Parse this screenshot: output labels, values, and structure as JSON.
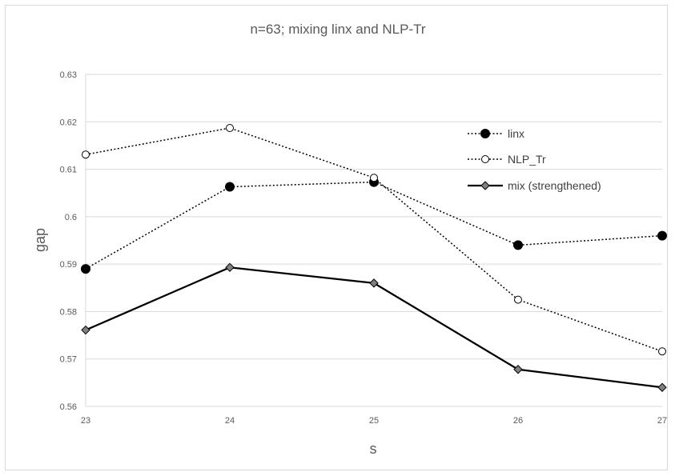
{
  "chart_data": {
    "type": "line",
    "title": "n=63; mixing linx and NLP-Tr",
    "xlabel": "s",
    "ylabel": "gap",
    "x": [
      23,
      24,
      25,
      26,
      27
    ],
    "xlim": [
      23,
      27
    ],
    "ylim": [
      0.56,
      0.63
    ],
    "yticks": [
      "0.56",
      "0.57",
      "0.58",
      "0.59",
      "0.6",
      "0.61",
      "0.62",
      "0.63"
    ],
    "xticks": [
      "23",
      "24",
      "25",
      "26",
      "27"
    ],
    "grid": "horizontal",
    "legend_position": "top-right",
    "series": [
      {
        "name": "linx",
        "values": [
          0.589,
          0.6063,
          0.6073,
          0.594,
          0.596
        ],
        "style": "dotted",
        "marker": "filled-circle",
        "color": "#000000"
      },
      {
        "name": "NLP_Tr",
        "values": [
          0.6131,
          0.6187,
          0.6082,
          0.5825,
          0.5716
        ],
        "style": "dotted",
        "marker": "open-circle",
        "color": "#000000"
      },
      {
        "name": "mix (strengthened)",
        "values": [
          0.5761,
          0.5893,
          0.586,
          0.5678,
          0.564
        ],
        "style": "solid",
        "marker": "diamond",
        "color": "#000000"
      }
    ]
  }
}
